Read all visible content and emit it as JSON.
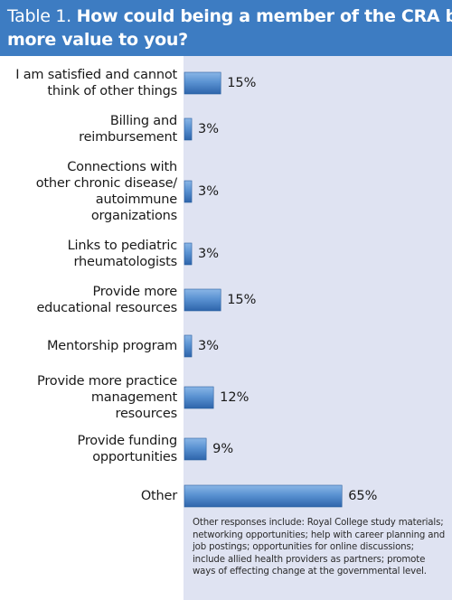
{
  "header": {
    "table_label": "Table 1.",
    "title_line1": "How could being a member of the CRA bring",
    "title_line2": "more value to you?"
  },
  "chart_data": {
    "type": "bar",
    "orientation": "horizontal",
    "title": "How could being a member of the CRA bring more value to you?",
    "categories": [
      [
        "I am satisfied and cannot",
        "think of other things"
      ],
      [
        "Billing and",
        "reimbursement"
      ],
      [
        "Connections with",
        "other chronic disease/",
        "autoimmune",
        "organizations"
      ],
      [
        "Links to pediatric",
        "rheumatologists"
      ],
      [
        "Provide more",
        "educational resources"
      ],
      [
        "Mentorship program"
      ],
      [
        "Provide more practice",
        "management",
        "resources"
      ],
      [
        "Provide funding",
        "opportunities"
      ],
      [
        "Other"
      ]
    ],
    "values": [
      15,
      3,
      3,
      3,
      15,
      3,
      12,
      9,
      65
    ],
    "value_labels": [
      "15%",
      "3%",
      "3%",
      "3%",
      "15%",
      "3%",
      "12%",
      "9%",
      "65%"
    ],
    "unit": "%",
    "xlim": [
      0,
      100
    ],
    "grid": false,
    "legend": "none"
  },
  "colors": {
    "header_bg": "#3d7cc2",
    "panel_bg": "#dfe3f2",
    "bar_light": "#6fa3dc",
    "bar_dark": "#2e67ad"
  },
  "footnote": "Other responses include: Royal College study materials; networking opportunities; help with career planning and job postings; opportunities for online discussions; include allied health providers as partners; promote ways of effecting change at the governmental level."
}
